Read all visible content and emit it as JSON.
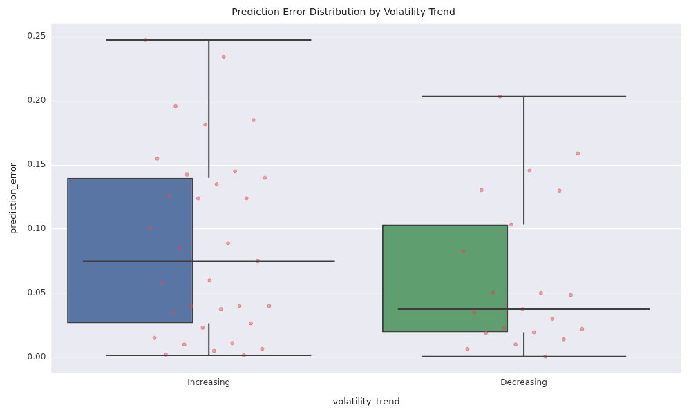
{
  "chart_data": {
    "type": "box",
    "title": "Prediction Error Distribution by Volatility Trend",
    "x_label": "volatility_trend",
    "y_label": "prediction_error",
    "categories": [
      "Increasing",
      "Decreasing"
    ],
    "colors": [
      "#5975a4",
      "#5f9e6e"
    ],
    "color": "#e24a4a",
    "whisker_low": [
      0.0015,
      0.0005
    ],
    "q1": [
      0.0265,
      0.0195
    ],
    "median": [
      0.075,
      0.0375
    ],
    "q3": [
      0.14,
      0.1035
    ],
    "whisker_high": [
      0.2475,
      0.2035
    ],
    "points": [
      [
        0.2475,
        0.2345,
        0.196,
        0.185,
        0.1815,
        0.155,
        0.145,
        0.1425,
        0.14,
        0.135,
        0.126,
        0.124,
        0.124,
        0.1005,
        0.089,
        0.0855,
        0.075,
        0.06,
        0.058,
        0.04,
        0.04,
        0.04,
        0.0375,
        0.035,
        0.0265,
        0.023,
        0.015,
        0.011,
        0.01,
        0.0065,
        0.005,
        0.002,
        0.0015
      ],
      [
        0.2035,
        0.159,
        0.1455,
        0.1305,
        0.13,
        0.1035,
        0.0825,
        0.05,
        0.0505,
        0.0485,
        0.0375,
        0.035,
        0.03,
        0.0225,
        0.022,
        0.0195,
        0.019,
        0.014,
        0.01,
        0.0065,
        0.0005
      ]
    ],
    "ylim": [
      -0.012,
      0.26
    ],
    "yticks": [
      {
        "value": 0,
        "label": "0.00"
      },
      {
        "value": 0.05,
        "label": "0.05"
      },
      {
        "value": 0.1,
        "label": "0.10"
      },
      {
        "value": 0.15,
        "label": "0.15"
      },
      {
        "value": 0.2,
        "label": "0.20"
      },
      {
        "value": 0.25,
        "label": "0.25"
      }
    ],
    "grid": true
  }
}
